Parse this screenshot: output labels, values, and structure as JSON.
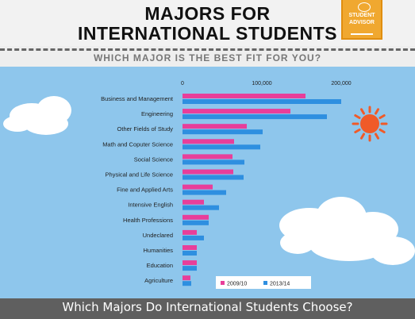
{
  "header": {
    "title_line1": "MAJORS FOR",
    "title_line2": "INTERNATIONAL STUDENTS",
    "subtitle": "WHICH MAJOR IS THE BEST FIT FOR YOU?",
    "badge_line1": "STUDENT",
    "badge_line2": "ADVISOR"
  },
  "footer": {
    "text": "Which Majors Do International Students Choose?"
  },
  "colors": {
    "sky": "#8ec6ec",
    "series_2009": "#e83e9a",
    "series_2013": "#2e8fe0",
    "sun": "#f05a28"
  },
  "chart_data": {
    "type": "bar",
    "orientation": "horizontal",
    "categories": [
      "Business and Management",
      "Engineering",
      "Other Fields of Study",
      "Math and Coputer Science",
      "Social Science",
      "Physical and Life Science",
      "Fine and Applied Arts",
      "Intensive English",
      "Health Professions",
      "Undeclared",
      "Humanities",
      "Education",
      "Agriculture"
    ],
    "series": [
      {
        "name": "2009/10",
        "values": [
          155000,
          136000,
          81000,
          65000,
          63000,
          64000,
          38000,
          27000,
          33000,
          18000,
          18000,
          18000,
          10000
        ]
      },
      {
        "name": "2013/14",
        "values": [
          200000,
          182000,
          101000,
          98000,
          78000,
          77000,
          55000,
          46000,
          33000,
          27000,
          18000,
          18000,
          11000
        ]
      }
    ],
    "x_ticks": [
      "0",
      "100,000",
      "200,000"
    ],
    "xlim": [
      0,
      230000
    ],
    "legend_position": "bottom-right",
    "grid": false
  }
}
